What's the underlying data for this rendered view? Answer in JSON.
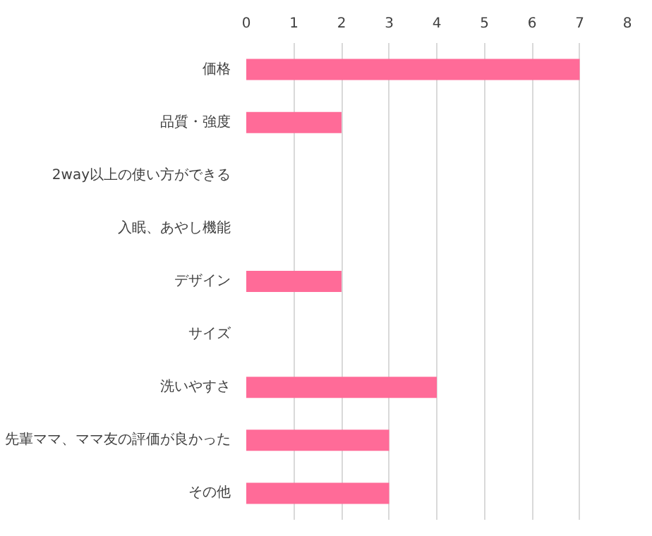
{
  "chart_data": {
    "type": "bar",
    "orientation": "horizontal",
    "categories": [
      "価格",
      "品質・強度",
      "2way以上の使い方ができる",
      "入眠、あやし機能",
      "デザイン",
      "サイズ",
      "洗いやすさ",
      "先輩ママ、ママ友の評価が良かった",
      "その他"
    ],
    "values": [
      7,
      2,
      0,
      0,
      2,
      0,
      4,
      3,
      3
    ],
    "color": "#ff6b98",
    "xlim": [
      0,
      8
    ],
    "xticks": [
      0,
      1,
      2,
      3,
      4,
      5,
      6,
      7,
      8
    ],
    "grid": "x"
  }
}
